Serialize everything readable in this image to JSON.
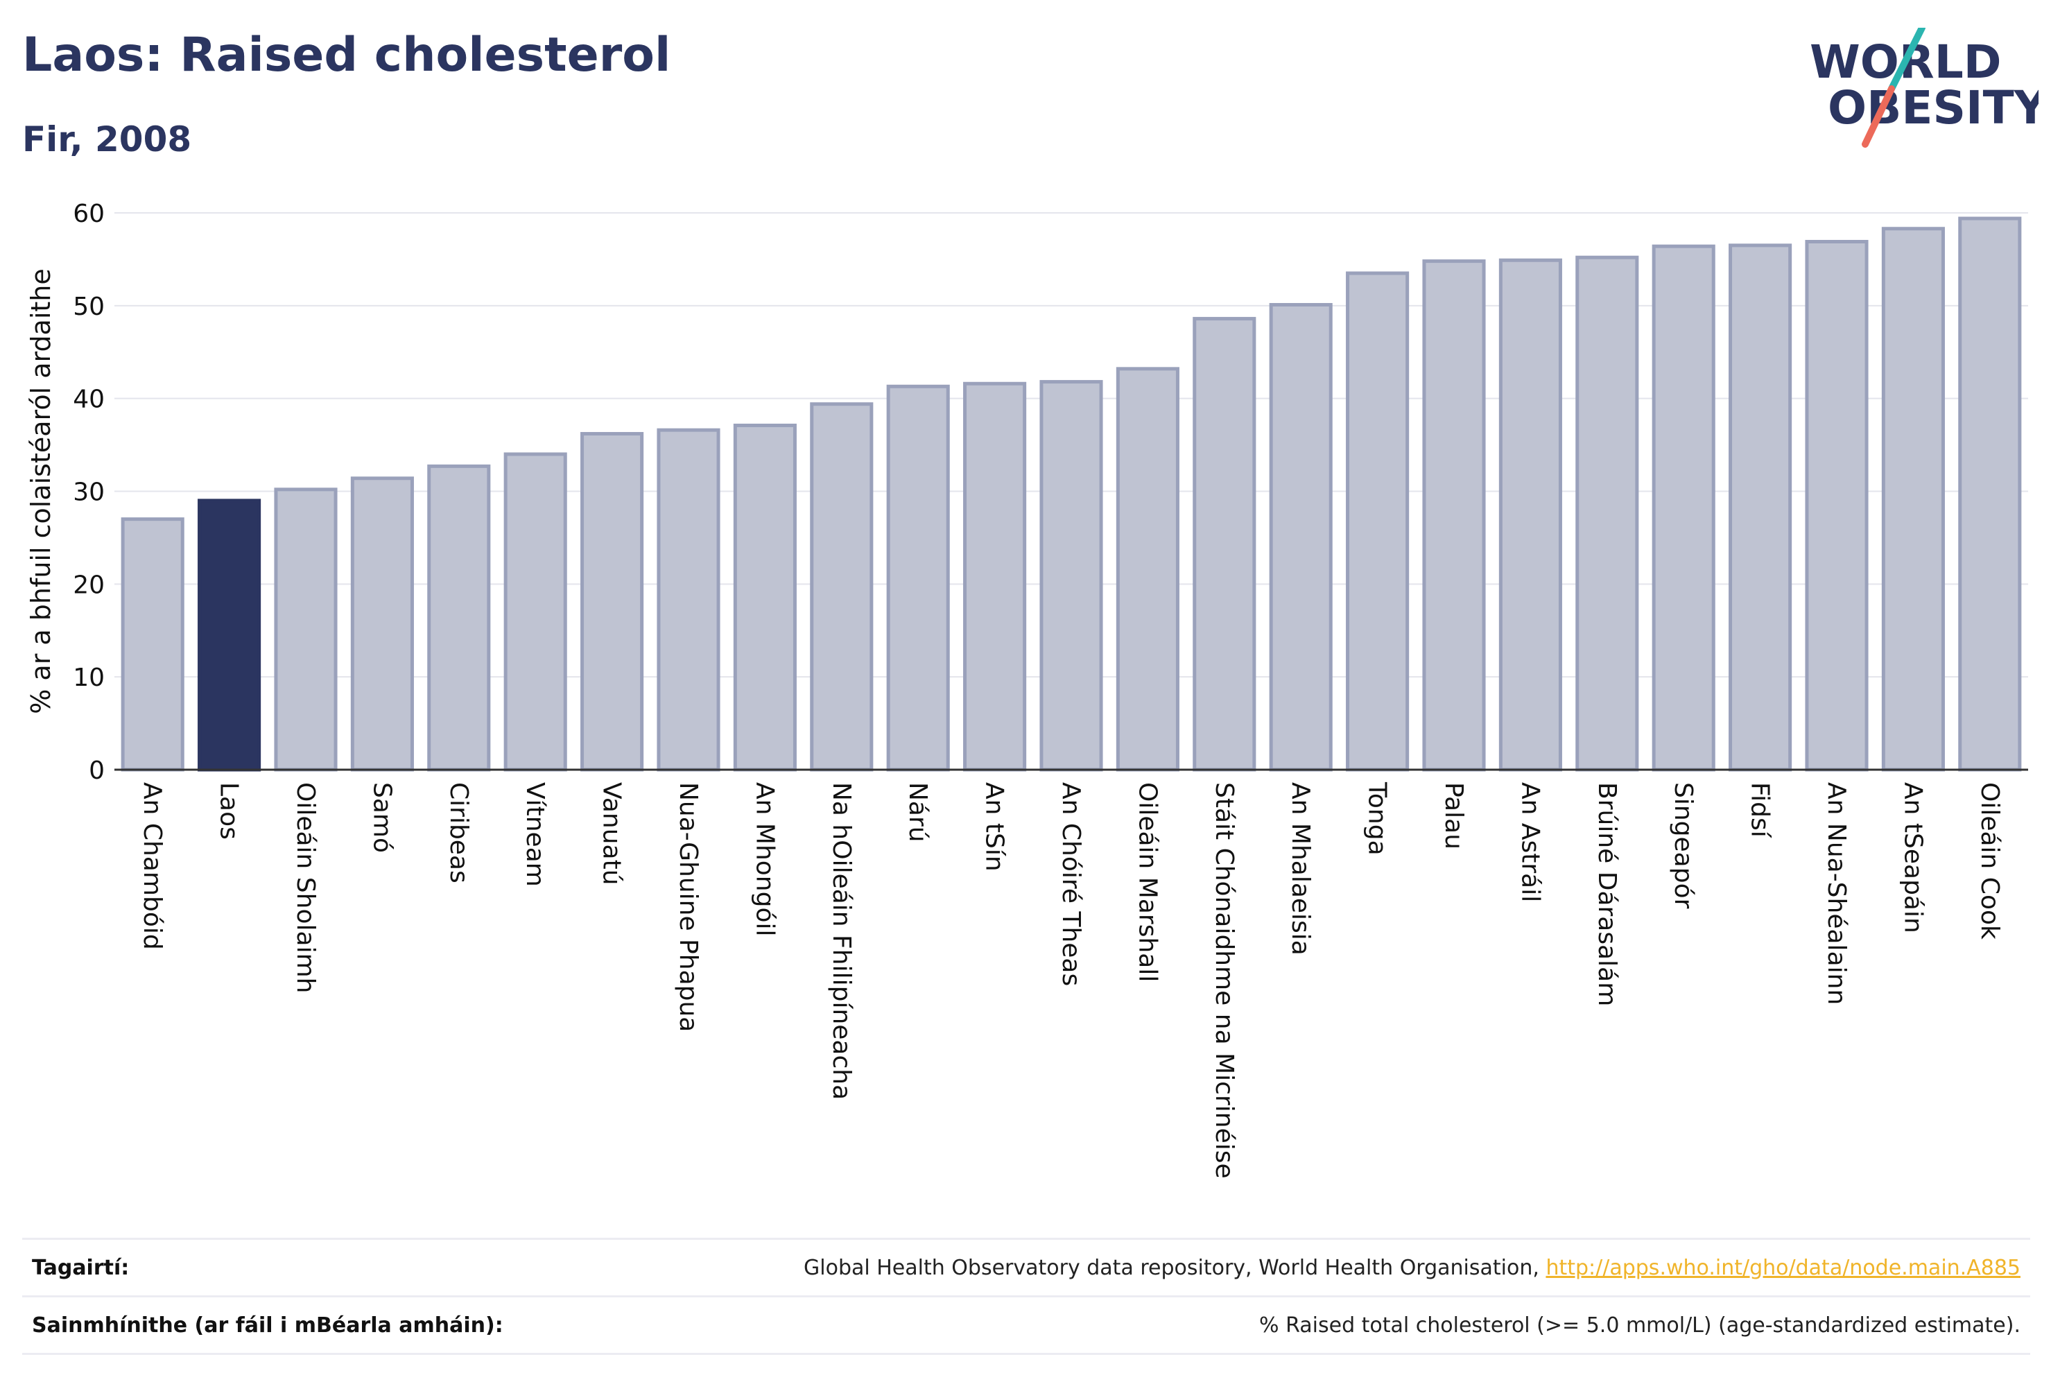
{
  "title": "Laos: Raised cholesterol",
  "subtitle": "Fir, 2008",
  "logo": {
    "line1": "WORLD",
    "line2": "OBESITY",
    "colors": {
      "text": "#2b3560",
      "slash_teal": "#2bb5b0",
      "slash_coral": "#ec6a5a"
    }
  },
  "chart_data": {
    "type": "bar",
    "ylabel": "% ar a bhfuil colaistéaról ardaithe",
    "ylim": [
      0,
      60
    ],
    "yticks": [
      0,
      10,
      20,
      30,
      40,
      50,
      60
    ],
    "grid": true,
    "highlight": "Laos",
    "colors": {
      "bar": "#bfc3d2",
      "bar_edge": "#9aa1bb",
      "highlight": "#2b3560",
      "grid": "#e4e5ec",
      "axis": "#333333"
    },
    "categories": [
      "An Chambóid",
      "Laos",
      "Oileáin Sholaimh",
      "Samó",
      "Ciribeas",
      "Vítneam",
      "Vanuatú",
      "Nua-Ghuine Phapua",
      "An Mhongóil",
      "Na hOileáin Fhilipíneacha",
      "Nárú",
      "An tSín",
      "An Chóiré Theas",
      "Oileáin Marshall",
      "Stáit Chónaidhme na Micrinéise",
      "An Mhalaeisia",
      "Tonga",
      "Palau",
      "An Astráil",
      "Brúiné Dárasalám",
      "Singeapór",
      "Fidsí",
      "An Nua-Shéalainn",
      "An tSeapáin",
      "Oileáin Cook"
    ],
    "values": [
      27.0,
      29.0,
      30.2,
      31.4,
      32.7,
      34.0,
      36.2,
      36.6,
      37.1,
      39.4,
      41.3,
      41.6,
      41.8,
      43.2,
      48.6,
      50.1,
      53.5,
      54.8,
      54.9,
      55.2,
      56.4,
      56.5,
      56.9,
      58.3,
      59.4
    ]
  },
  "footer": {
    "references_label": "Tagairtí:",
    "references_text": "Global Health Observatory data repository, World Health Organisation, ",
    "references_link": "http://apps.who.int/gho/data/node.main.A885",
    "definitions_label": "Sainmhínithe (ar fáil i mBéarla amháin):",
    "definitions_text": "% Raised total cholesterol (>= 5.0 mmol/L) (age-standardized estimate)."
  }
}
